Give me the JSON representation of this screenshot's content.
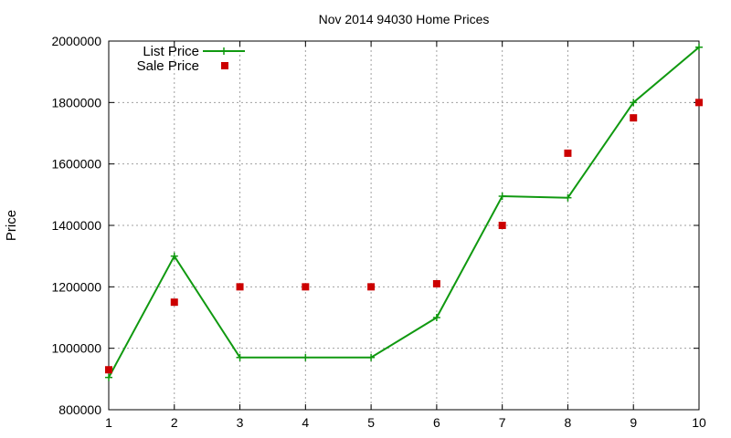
{
  "chart_data": {
    "type": "line",
    "title": "Nov 2014 94030 Home Prices",
    "xlabel": "",
    "ylabel": "Price",
    "x": [
      1,
      2,
      3,
      4,
      5,
      6,
      7,
      8,
      9,
      10
    ],
    "xlim": [
      1,
      10
    ],
    "ylim": [
      800000,
      2000000
    ],
    "xticks": [
      "1",
      "2",
      "3",
      "4",
      "5",
      "6",
      "7",
      "8",
      "9",
      "10"
    ],
    "yticks": [
      "800000",
      "1000000",
      "1200000",
      "1400000",
      "1600000",
      "1800000",
      "2000000"
    ],
    "grid": true,
    "legend_position": "top-left",
    "series": [
      {
        "name": "List Price",
        "style": "line-with-plus-markers",
        "color": "#109910",
        "values": [
          905000,
          1300000,
          970000,
          970000,
          970000,
          1100000,
          1495000,
          1490000,
          1800000,
          1980000
        ]
      },
      {
        "name": "Sale Price",
        "style": "square-points",
        "color": "#cc0000",
        "values": [
          930000,
          1150000,
          1200000,
          1200000,
          1200000,
          1210000,
          1400000,
          1635000,
          1750000,
          1800000
        ]
      }
    ]
  }
}
